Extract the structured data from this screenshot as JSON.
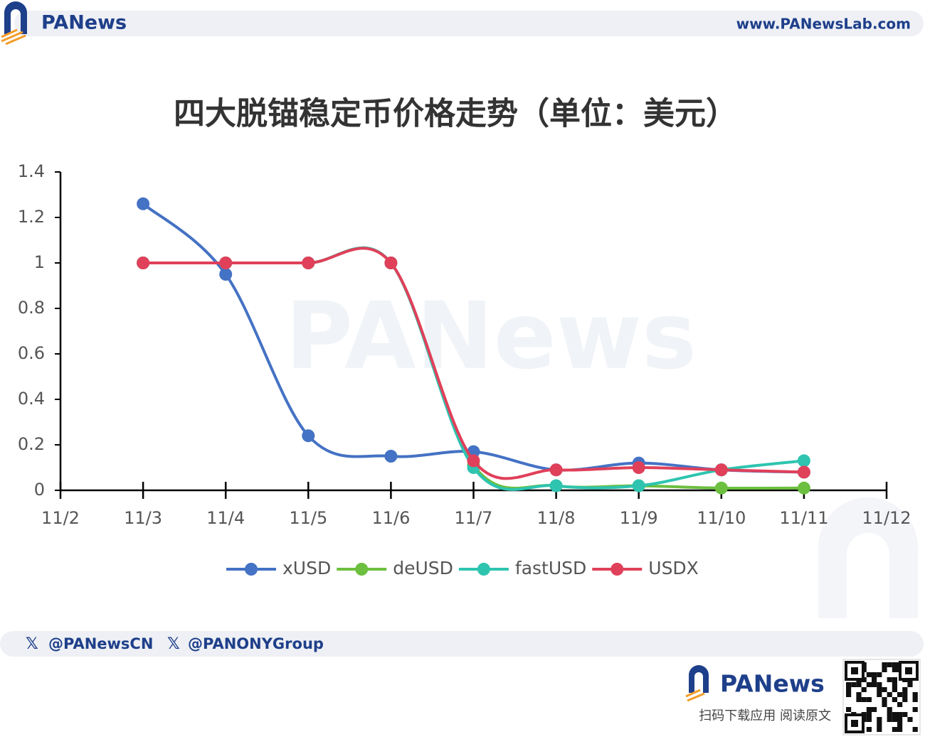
{
  "brand": "PANews",
  "header": {
    "url": "www.PANewsLab.com"
  },
  "footer": {
    "handles": [
      "@PANewsCN",
      "@PANONYGroup"
    ],
    "qr_caption": "扫码下载应用 阅读原文"
  },
  "chart_data": {
    "type": "line",
    "title": "四大脱锚稳定币价格走势（单位：美元）",
    "categories": [
      "11/2",
      "11/3",
      "11/4",
      "11/5",
      "11/6",
      "11/7",
      "11/8",
      "11/9",
      "11/10",
      "11/11",
      "11/12"
    ],
    "series": [
      {
        "name": "xUSD",
        "color": "#4472c4",
        "values": [
          null,
          1.26,
          0.95,
          0.24,
          0.15,
          0.17,
          0.09,
          0.12,
          0.09,
          0.08,
          null
        ]
      },
      {
        "name": "deUSD",
        "color": "#6cbf3f",
        "values": [
          null,
          1,
          1,
          1,
          1,
          0.11,
          0.02,
          0.02,
          0.01,
          0.01,
          null
        ]
      },
      {
        "name": "fastUSD",
        "color": "#2ec4b0",
        "values": [
          null,
          1,
          1,
          1,
          1,
          0.1,
          0.02,
          0.02,
          0.09,
          0.13,
          null
        ]
      },
      {
        "name": "USDX",
        "color": "#e0405a",
        "values": [
          null,
          1,
          1,
          1,
          1,
          0.13,
          0.09,
          0.1,
          0.09,
          0.08,
          null
        ]
      }
    ],
    "ylim": [
      0,
      1.4
    ],
    "yticks": [
      0,
      0.2,
      0.4,
      0.6,
      0.8,
      1,
      1.2,
      1.4
    ],
    "grid": false,
    "legend": "bottom"
  }
}
